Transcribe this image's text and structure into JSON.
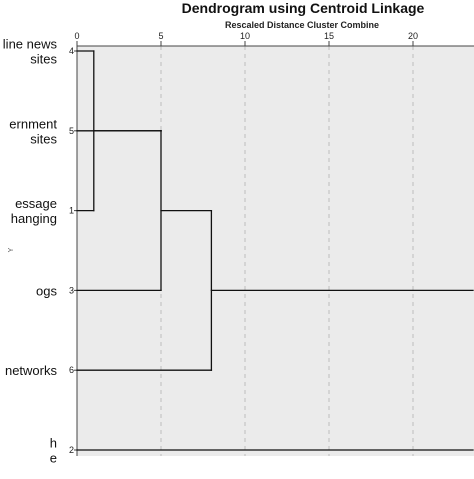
{
  "chart_data": {
    "type": "dendrogram",
    "title": "Dendrogram using Centroid Linkage",
    "subtitle": "Rescaled Distance Cluster Combine",
    "xlim": [
      0,
      25
    ],
    "x_ticks": [
      0,
      5,
      10,
      15,
      20
    ],
    "grid": true,
    "y_axis_mark": "Y",
    "leaves": [
      {
        "id": "4",
        "label_lines": [
          "line news",
          "sites"
        ]
      },
      {
        "id": "5",
        "label_lines": [
          "ernment",
          "sites"
        ]
      },
      {
        "id": "1",
        "label_lines": [
          "essage",
          "hanging"
        ]
      },
      {
        "id": "3",
        "label_lines": [
          "ogs"
        ]
      },
      {
        "id": "6",
        "label_lines": [
          "networks"
        ]
      },
      {
        "id": "2",
        "label_lines": [
          "h",
          "e"
        ]
      }
    ],
    "merges": [
      {
        "left": "4",
        "right": "1",
        "distance": 1
      },
      {
        "left": "4+1",
        "right": "5",
        "distance": 5
      },
      {
        "left": "4+1+5",
        "right": "3",
        "distance": 5
      },
      {
        "left": "4+1+5+3",
        "right": "6",
        "distance": 8
      },
      {
        "left": "4+1+5+3+6",
        "right": "2",
        "distance": 25
      }
    ]
  }
}
